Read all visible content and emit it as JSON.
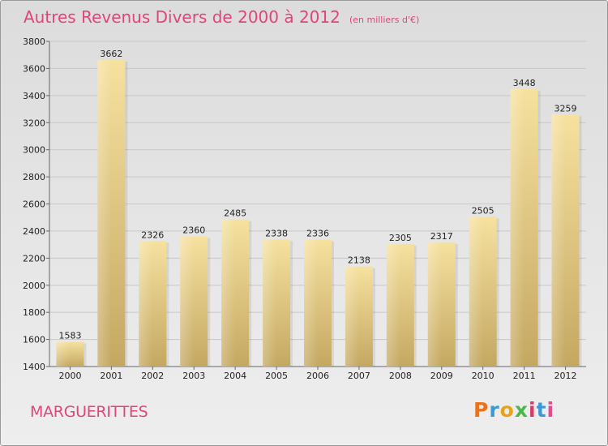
{
  "header": {
    "title": "Autres Revenus Divers de 2000 à 2012",
    "subtitle": "(en milliers d'€)"
  },
  "footer": {
    "city": "MARGUERITTES",
    "logo_text": "Proxiti",
    "logo_colors": [
      "#e8731c",
      "#3a9ad9",
      "#e8a21c",
      "#4ab84a",
      "#d63b6b",
      "#3a9ad9",
      "#e84a8c"
    ]
  },
  "colors": {
    "title": "#e0457b",
    "bar_light": "#f4dc98",
    "bar_dark": "#c5aa62",
    "grid": "#c8c8c8"
  },
  "chart_data": {
    "type": "bar",
    "categories": [
      "2000",
      "2001",
      "2002",
      "2003",
      "2004",
      "2005",
      "2006",
      "2007",
      "2008",
      "2009",
      "2010",
      "2011",
      "2012"
    ],
    "values": [
      1583,
      3662,
      2326,
      2360,
      2485,
      2338,
      2336,
      2138,
      2305,
      2317,
      2505,
      3448,
      3259
    ],
    "ylim": [
      1400,
      3800
    ],
    "yticks": [
      1400,
      1600,
      1800,
      2000,
      2200,
      2400,
      2600,
      2800,
      3000,
      3200,
      3400,
      3600,
      3800
    ],
    "grid": true
  }
}
